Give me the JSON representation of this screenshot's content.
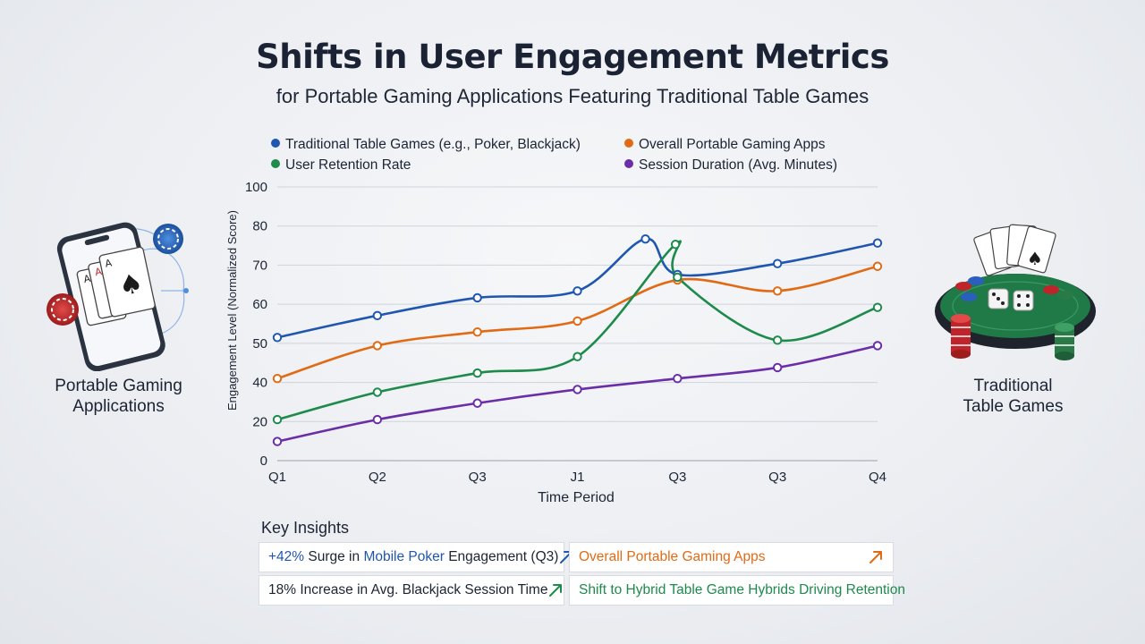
{
  "header": {
    "title": "Shifts in User Engagement Metrics",
    "subtitle": "for Portable Gaming Applications Featuring Traditional Table Games"
  },
  "left_panel": {
    "label_line1": "Portable Gaming",
    "label_line2": "Applications",
    "icon": "smartphone-cards-chips-icon"
  },
  "right_panel": {
    "label_line1": "Traditional",
    "label_line2": "Table Games",
    "icon": "card-table-dice-chips-icon"
  },
  "chart_data": {
    "type": "line",
    "title": "",
    "xlabel": "Time Period",
    "ylabel": "Engagement Level (Normalized Score)",
    "ylim": [
      0,
      100
    ],
    "yticks": [
      0,
      20,
      40,
      50,
      60,
      70,
      80,
      100
    ],
    "categories": [
      "Q1",
      "Q2",
      "Q3",
      "J1",
      "Q3",
      "Q3",
      "Q4"
    ],
    "legend_position": "top",
    "grid": true,
    "series": [
      {
        "name": "Traditional Table Games (e.g., Poker, Blackjack)",
        "color": "#1f56b0",
        "values": [
          45,
          53,
          59.5,
          62,
          68,
          72,
          79.5
        ],
        "peak": [
          3.68,
          81
        ]
      },
      {
        "name": "Overall Portable Gaming Apps",
        "color": "#e06b14",
        "values": [
          30,
          42,
          47,
          51,
          66,
          62,
          71
        ]
      },
      {
        "name": "User Retention Rate",
        "color": "#1e8a4c",
        "values": [
          15,
          25,
          32,
          38,
          67,
          44,
          56
        ],
        "peak": [
          3.98,
          79
        ]
      },
      {
        "name": "Session Duration (Avg. Minutes)",
        "color": "#6a2ea6",
        "values": [
          7,
          15,
          21,
          26,
          30,
          34,
          42
        ]
      }
    ]
  },
  "insights": {
    "title": "Key Insights",
    "cards": [
      {
        "parts": [
          [
            "+42%",
            "blue"
          ],
          [
            " Surge in ",
            "dark"
          ],
          [
            "Mobile Poker",
            "blue"
          ],
          [
            " Engagement (Q3)",
            "dark"
          ]
        ],
        "arrow_color": "#1f56b0"
      },
      {
        "parts": [
          [
            "Overall Portable Gaming Apps",
            "orange"
          ]
        ],
        "arrow_color": "#e06b14"
      },
      {
        "parts": [
          [
            "18% Increase in Avg. Blackjack Session Time",
            "dark"
          ]
        ],
        "arrow_color": "#1e8a4c"
      },
      {
        "parts": [
          [
            "Shift to Hybrid Table Game Hybrids Driving Retention",
            "green"
          ]
        ],
        "arrow_color": "#1e8a4c"
      }
    ]
  }
}
